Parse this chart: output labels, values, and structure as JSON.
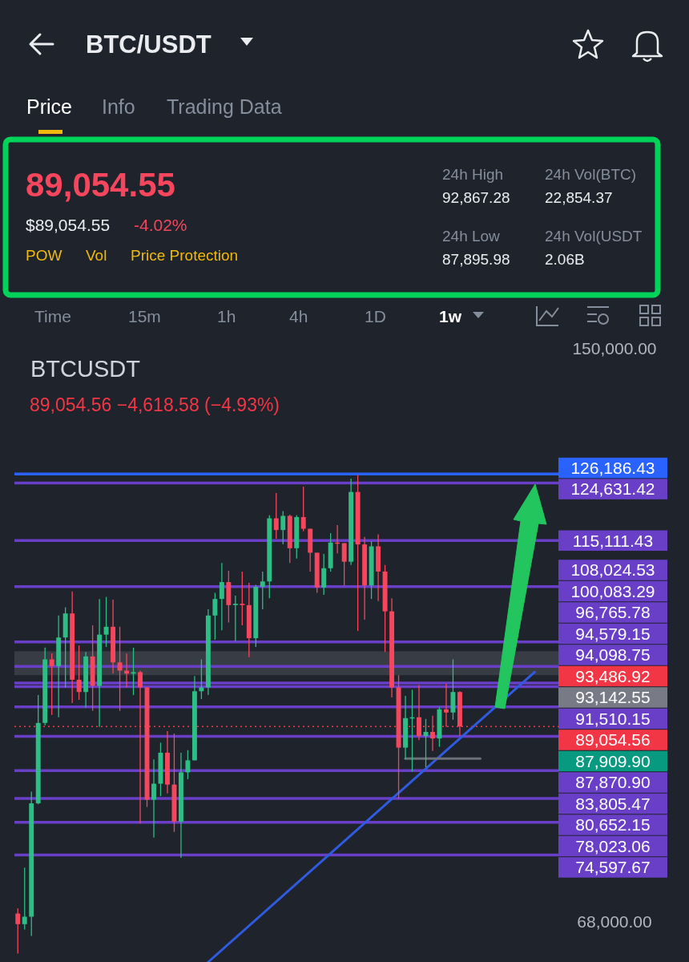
{
  "chart_data": [
    {
      "type": "other",
      "title": "BTC/USDT",
      "annotations": [
        "89,054.55",
        "$89,054.55",
        "-4.02%",
        "POW",
        "Vol",
        "Price Protection",
        "24h High",
        "92,867.28",
        "24h Vol(BTC)",
        "22,854.37",
        "24h Low",
        "87,895.98",
        "24h Vol(USDT",
        "2.06B",
        "Price",
        "Info",
        "Trading Data",
        "Time",
        "15m",
        "1h",
        "4h",
        "1D",
        "1w"
      ]
    },
    {
      "type": "candlestick",
      "title": "BTCUSDT",
      "subtitle": "89,054.56  −4,618.58 (−4.93%)",
      "log": true,
      "ylim": [
        64350,
        150000
      ],
      "yticks": [
        {
          "value": 150000,
          "label": "150,000.00"
        },
        {
          "value": 68000,
          "label": "68,000.00"
        }
      ],
      "categories": [
        null,
        null,
        null,
        null,
        null,
        null,
        null,
        null,
        null,
        null,
        null,
        null,
        null,
        null,
        null,
        null,
        null,
        null,
        null,
        null,
        null,
        null,
        null,
        null,
        null,
        null,
        null,
        null,
        null,
        null,
        null,
        null,
        null,
        null,
        null,
        null,
        null,
        null,
        null,
        null,
        null,
        null,
        null,
        null,
        null,
        null,
        null,
        null,
        null,
        null,
        null,
        null,
        null,
        null,
        null,
        null,
        null,
        null,
        null,
        null,
        null,
        null,
        null,
        null,
        null,
        null,
        null,
        null,
        null,
        null,
        null,
        null,
        null,
        null,
        null,
        null,
        null,
        null,
        null,
        null
      ],
      "series": [
        {
          "type": "candlestick",
          "ohlc": [
            [
              68800,
              69300,
              65100,
              67800
            ],
            [
              67800,
              73300,
              67300,
              68500
            ],
            [
              68500,
              81400,
              66700,
              80100
            ],
            [
              80100,
              93000,
              80000,
              89500
            ],
            [
              89500,
              99300,
              89200,
              97700
            ],
            [
              97700,
              98500,
              90500,
              96800
            ],
            [
              96800,
              103800,
              90200,
              100700
            ],
            [
              100700,
              105000,
              94000,
              104100
            ],
            [
              104100,
              107300,
              92000,
              95000
            ],
            [
              95000,
              99600,
              92400,
              93400
            ],
            [
              93400,
              98700,
              91400,
              98100
            ],
            [
              98100,
              102400,
              91000,
              94200
            ],
            [
              94200,
              106200,
              89000,
              101100
            ],
            [
              101100,
              106500,
              99400,
              102200
            ],
            [
              102200,
              106100,
              95800,
              97300
            ],
            [
              97300,
              102200,
              91000,
              96200
            ],
            [
              96200,
              98500,
              94000,
              95800
            ],
            [
              95800,
              99300,
              93000,
              96000
            ],
            [
              96000,
              96200,
              77900,
              94000
            ],
            [
              94000,
              94000,
              79700,
              80500
            ],
            [
              80500,
              85100,
              76400,
              82300
            ],
            [
              82300,
              87100,
              80900,
              85900
            ],
            [
              85900,
              88500,
              81200,
              82200
            ],
            [
              82200,
              88200,
              77000,
              78100
            ],
            [
              78100,
              85900,
              74300,
              83600
            ],
            [
              83600,
              86200,
              82800,
              85000
            ],
            [
              85000,
              95500,
              85000,
              93500
            ],
            [
              93500,
              97700,
              92500,
              94000
            ],
            [
              94000,
              104700,
              93000,
              103800
            ],
            [
              103800,
              107100,
              100400,
              106200
            ],
            [
              106200,
              111600,
              101700,
              108700
            ],
            [
              108700,
              110400,
              102800,
              105300
            ],
            [
              105300,
              106700,
              100200,
              105500
            ],
            [
              105500,
              110300,
              102400,
              105300
            ],
            [
              105300,
              108600,
              98000,
              100600
            ],
            [
              100600,
              108300,
              99400,
              108000
            ],
            [
              108000,
              110300,
              104700,
              108800
            ],
            [
              108800,
              119200,
              106300,
              118700
            ],
            [
              118700,
              122900,
              115400,
              116800
            ],
            [
              116800,
              119900,
              114500,
              119100
            ],
            [
              119100,
              119300,
              111600,
              113900
            ],
            [
              113900,
              119200,
              112300,
              118900
            ],
            [
              118900,
              124000,
              116600,
              117000
            ],
            [
              117000,
              117000,
              110300,
              113200
            ],
            [
              113200,
              113200,
              107100,
              107900
            ],
            [
              107900,
              113000,
              106800,
              110800
            ],
            [
              110800,
              116300,
              110300,
              114800
            ],
            [
              114800,
              117600,
              113100,
              114700
            ],
            [
              114700,
              114700,
              108200,
              111800
            ],
            [
              111800,
              125400,
              111300,
              123100
            ],
            [
              123100,
              126000,
              101600,
              114500
            ],
            [
              114500,
              115700,
              103200,
              108200
            ],
            [
              108200,
              115000,
              106200,
              114200
            ],
            [
              114200,
              116100,
              105900,
              110300
            ],
            [
              110300,
              111300,
              98700,
              104400
            ],
            [
              104400,
              106300,
              92700,
              94000
            ],
            [
              94000,
              95600,
              80600,
              86500
            ],
            [
              86500,
              92900,
              85100,
              90100
            ],
            [
              90100,
              93700,
              83700,
              90200
            ],
            [
              90200,
              94300,
              87400,
              87900
            ],
            [
              87900,
              90000,
              84200,
              88400
            ],
            [
              88400,
              90400,
              86100,
              87600
            ],
            [
              87600,
              91500,
              86600,
              91200
            ],
            [
              91200,
              94500,
              89000,
              90800
            ],
            [
              90800,
              97700,
              89900,
              93400
            ],
            [
              93400,
              93500,
              87900,
              89054.56
            ],
            null,
            null,
            null,
            null,
            null,
            null,
            null,
            null,
            null,
            null,
            null,
            null,
            null,
            null
          ],
          "colors": [
            "#f6465d",
            "#2ebd85",
            "#2ebd85",
            "#2ebd85",
            "#2ebd85",
            "#f6465d",
            "#2ebd85",
            "#2ebd85",
            "#f6465d",
            "#f6465d",
            "#2ebd85",
            "#f6465d",
            "#2ebd85",
            "#2ebd85",
            "#f6465d",
            "#f6465d",
            "#f6465d",
            "#2ebd85",
            "#f6465d",
            "#f6465d",
            "#2ebd85",
            "#2ebd85",
            "#f6465d",
            "#f6465d",
            "#2ebd85",
            "#2ebd85",
            "#2ebd85",
            "#2ebd85",
            "#2ebd85",
            "#2ebd85",
            "#2ebd85",
            "#f6465d",
            "#2ebd85",
            "#f6465d",
            "#f6465d",
            "#2ebd85",
            "#2ebd85",
            "#2ebd85",
            "#f6465d",
            "#2ebd85",
            "#f6465d",
            "#2ebd85",
            "#f6465d",
            "#f6465d",
            "#f6465d",
            "#2ebd85",
            "#2ebd85",
            "#f6465d",
            "#f6465d",
            "#2ebd85",
            "#f6465d",
            "#f6465d",
            "#2ebd85",
            "#f6465d",
            "#f6465d",
            "#f6465d",
            "#f6465d",
            "#2ebd85",
            "#2ebd85",
            "#f6465d",
            "#2ebd85",
            "#f6465d",
            "#2ebd85",
            "#f6465d",
            "#2ebd85",
            "#f6465d",
            null,
            null,
            null,
            null,
            null,
            null,
            null,
            null,
            null,
            null,
            null,
            null,
            null,
            null
          ]
        },
        {
          "type": "line",
          "color": "#2f5be0",
          "values": [
            null,
            null,
            null,
            null,
            null,
            null,
            null,
            null,
            null,
            null,
            null,
            null,
            null,
            null,
            null,
            null,
            null,
            null,
            null,
            null,
            null,
            null,
            null,
            null,
            null,
            null,
            null,
            null,
            64350,
            null,
            null,
            null,
            null,
            null,
            null,
            null,
            null,
            null,
            null,
            null,
            null,
            null,
            null,
            null,
            null,
            null,
            null,
            null,
            null,
            null,
            null,
            null,
            null,
            null,
            null,
            null,
            null,
            null,
            null,
            null,
            null,
            null,
            null,
            null,
            null,
            null,
            null,
            null,
            null,
            null,
            null,
            null,
            null,
            null,
            null,
            null,
            96000,
            null,
            null,
            null
          ]
        },
        {
          "type": "line",
          "color": "#6b6f77",
          "values": [
            null,
            null,
            null,
            null,
            null,
            null,
            null,
            null,
            null,
            null,
            null,
            null,
            null,
            null,
            null,
            null,
            null,
            null,
            null,
            null,
            null,
            null,
            null,
            null,
            null,
            null,
            null,
            null,
            null,
            null,
            null,
            null,
            null,
            null,
            null,
            null,
            null,
            null,
            null,
            null,
            null,
            null,
            null,
            null,
            null,
            null,
            null,
            null,
            null,
            null,
            null,
            null,
            null,
            null,
            null,
            null,
            null,
            85200,
            null,
            null,
            null,
            null,
            null,
            null,
            null,
            null,
            null,
            null,
            85200,
            null,
            null,
            null,
            null,
            null,
            null,
            null,
            null,
            null,
            null,
            null
          ]
        }
      ],
      "annotations": [
        "93,486.92",
        "93,142.55",
        "87,909.90"
      ],
      "bands": [
        {
          "axis": "y",
          "from": 95600,
          "to": 98800,
          "color": "#4a4f57"
        }
      ],
      "ref_lines": [
        {
          "axis": "y",
          "value": 126186.43,
          "label": "126,186.43",
          "color": "#2962ff"
        },
        {
          "axis": "y",
          "value": 124631.42,
          "label": "124,631.42",
          "color": "#6a3fc8"
        },
        {
          "axis": "y",
          "value": 115111.43,
          "label": "115,111.43",
          "color": "#6a3fc8"
        },
        {
          "axis": "y",
          "value": 108024.53,
          "label": "108,024.53",
          "color": "#6a3fc8"
        },
        {
          "axis": "y",
          "value": 100083.29,
          "label": "100,083.29",
          "color": "#6a3fc8"
        },
        {
          "axis": "y",
          "value": 96765.78,
          "label": "96,765.78",
          "color": "#6a3fc8"
        },
        {
          "axis": "y",
          "value": 94579.15,
          "label": "94,579.15",
          "color": "#6a3fc8"
        },
        {
          "axis": "y",
          "value": 94098.75,
          "label": "94,098.75",
          "color": "#6a3fc8"
        },
        {
          "axis": "y",
          "value": 91510.15,
          "label": "91,510.15",
          "color": "#6a3fc8"
        },
        {
          "axis": "y",
          "value": 89054.56,
          "label": "89,054.56",
          "color": "#f23645",
          "line_style": "dotted"
        },
        {
          "axis": "y",
          "value": 87870.9,
          "label": "87,870.90",
          "color": "#6a3fc8"
        },
        {
          "axis": "y",
          "value": 83805.47,
          "label": "83,805.47",
          "color": "#6a3fc8"
        },
        {
          "axis": "y",
          "value": 80652.15,
          "label": "80,652.15",
          "color": "#6a3fc8"
        },
        {
          "axis": "y",
          "value": 78023.06,
          "label": "78,023.06",
          "color": "#6a3fc8"
        },
        {
          "axis": "y",
          "value": 74597.67,
          "label": "74,597.67",
          "color": "#6a3fc8"
        }
      ]
    }
  ]
}
